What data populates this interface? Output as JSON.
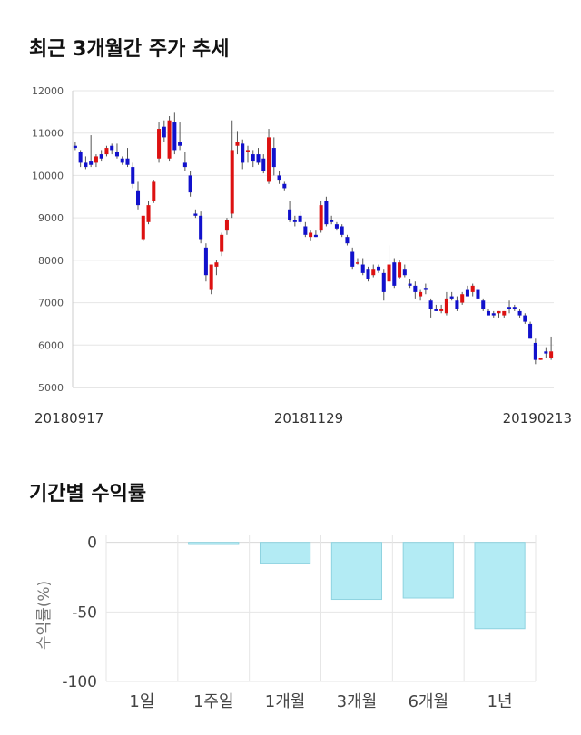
{
  "sections": {
    "candle_title": "최근 3개월간 주가 추세",
    "returns_title": "기간별 수익률"
  },
  "chart_data": [
    {
      "type": "candlestick",
      "title": "최근 3개월간 주가 추세",
      "ylim": [
        5000,
        12000
      ],
      "yticks": [
        5000,
        6000,
        7000,
        8000,
        9000,
        10000,
        11000,
        12000
      ],
      "xtick_labels": [
        "20180917",
        "20181129",
        "20190213"
      ],
      "grid": true,
      "colors": {
        "up": "#dd1111",
        "down": "#1111cc",
        "wick": "#555555",
        "grid": "#e6e6e6"
      },
      "ohlc": [
        [
          10700,
          10800,
          10600,
          10650
        ],
        [
          10550,
          10600,
          10200,
          10300
        ],
        [
          10300,
          10450,
          10150,
          10200
        ],
        [
          10350,
          10950,
          10200,
          10250
        ],
        [
          10300,
          10500,
          10200,
          10450
        ],
        [
          10500,
          10600,
          10350,
          10400
        ],
        [
          10500,
          10700,
          10450,
          10650
        ],
        [
          10700,
          10750,
          10500,
          10600
        ],
        [
          10550,
          10750,
          10400,
          10450
        ],
        [
          10400,
          10450,
          10250,
          10300
        ],
        [
          10400,
          10650,
          10200,
          10250
        ],
        [
          10200,
          10300,
          9700,
          9800
        ],
        [
          9650,
          9850,
          9200,
          9300
        ],
        [
          8500,
          9050,
          8450,
          9050
        ],
        [
          8900,
          9400,
          8850,
          9300
        ],
        [
          9400,
          9900,
          9350,
          9850
        ],
        [
          10400,
          11250,
          10300,
          11100
        ],
        [
          11150,
          11300,
          10800,
          10900
        ],
        [
          10400,
          11400,
          10350,
          11300
        ],
        [
          11250,
          11500,
          10500,
          10600
        ],
        [
          10800,
          11250,
          10600,
          10700
        ],
        [
          10300,
          10550,
          10100,
          10200
        ],
        [
          10000,
          10100,
          9500,
          9600
        ],
        [
          9100,
          9200,
          9000,
          9050
        ],
        [
          9050,
          9150,
          8400,
          8500
        ],
        [
          8300,
          8400,
          7500,
          7650
        ],
        [
          7300,
          7900,
          7200,
          7900
        ],
        [
          7850,
          8000,
          7650,
          7950
        ],
        [
          8200,
          8650,
          8100,
          8600
        ],
        [
          8700,
          9000,
          8600,
          8950
        ],
        [
          9100,
          11300,
          9000,
          10600
        ],
        [
          10700,
          11050,
          10500,
          10800
        ],
        [
          10750,
          10850,
          10150,
          10300
        ],
        [
          10550,
          10700,
          10300,
          10600
        ],
        [
          10500,
          10600,
          10200,
          10350
        ],
        [
          10500,
          10650,
          10250,
          10300
        ],
        [
          10400,
          10500,
          10050,
          10100
        ],
        [
          9850,
          11100,
          9800,
          10900
        ],
        [
          10650,
          10900,
          10000,
          10200
        ],
        [
          10000,
          10100,
          9800,
          9900
        ],
        [
          9800,
          9850,
          9650,
          9700
        ],
        [
          9200,
          9400,
          8900,
          8950
        ],
        [
          8950,
          9050,
          8800,
          8900
        ],
        [
          9050,
          9150,
          8850,
          8900
        ],
        [
          8800,
          8900,
          8550,
          8600
        ],
        [
          8550,
          8700,
          8450,
          8650
        ],
        [
          8600,
          8700,
          8550,
          8550
        ],
        [
          8700,
          9400,
          8650,
          9300
        ],
        [
          9400,
          9500,
          8800,
          8850
        ],
        [
          8950,
          9050,
          8850,
          8900
        ],
        [
          8850,
          8900,
          8700,
          8750
        ],
        [
          8800,
          8850,
          8550,
          8600
        ],
        [
          8550,
          8600,
          8350,
          8400
        ],
        [
          8200,
          8300,
          7800,
          7850
        ],
        [
          7950,
          8050,
          7900,
          7950
        ],
        [
          7900,
          8050,
          7650,
          7700
        ],
        [
          7800,
          7850,
          7500,
          7550
        ],
        [
          7650,
          7900,
          7600,
          7800
        ],
        [
          7850,
          7900,
          7700,
          7750
        ],
        [
          7700,
          7800,
          7050,
          7250
        ],
        [
          7500,
          8350,
          7450,
          7900
        ],
        [
          7950,
          8050,
          7350,
          7400
        ],
        [
          7600,
          8000,
          7550,
          7950
        ],
        [
          7800,
          7900,
          7600,
          7650
        ],
        [
          7450,
          7550,
          7350,
          7400
        ],
        [
          7400,
          7500,
          7100,
          7250
        ],
        [
          7150,
          7300,
          7050,
          7250
        ],
        [
          7350,
          7450,
          7200,
          7300
        ],
        [
          7050,
          7100,
          6650,
          6850
        ],
        [
          6850,
          6950,
          6800,
          6800
        ],
        [
          6800,
          6950,
          6750,
          6850
        ],
        [
          6750,
          7250,
          6700,
          7100
        ],
        [
          7150,
          7250,
          7050,
          7100
        ],
        [
          7050,
          7150,
          6800,
          6850
        ],
        [
          7000,
          7250,
          6950,
          7200
        ],
        [
          7300,
          7400,
          7150,
          7150
        ],
        [
          7250,
          7450,
          7150,
          7400
        ],
        [
          7300,
          7400,
          7050,
          7100
        ],
        [
          7050,
          7100,
          6800,
          6850
        ],
        [
          6800,
          6850,
          6700,
          6700
        ],
        [
          6750,
          6800,
          6650,
          6700
        ],
        [
          6750,
          6800,
          6650,
          6800
        ],
        [
          6700,
          6800,
          6650,
          6800
        ],
        [
          6900,
          7050,
          6750,
          6850
        ],
        [
          6900,
          6950,
          6800,
          6850
        ],
        [
          6800,
          6850,
          6650,
          6700
        ],
        [
          6700,
          6750,
          6500,
          6550
        ],
        [
          6500,
          6550,
          6150,
          6150
        ],
        [
          6050,
          6150,
          5550,
          5650
        ],
        [
          5650,
          5700,
          5650,
          5700
        ],
        [
          5850,
          5950,
          5700,
          5800
        ],
        [
          5700,
          6200,
          5650,
          5850
        ]
      ]
    },
    {
      "type": "bar",
      "title": "기간별 수익률",
      "ylabel": "수익률(%)",
      "ylim": [
        -100,
        5
      ],
      "yticks": [
        0,
        -50,
        -100
      ],
      "categories": [
        "1일",
        "1주일",
        "1개월",
        "3개월",
        "6개월",
        "1년"
      ],
      "values": [
        0,
        -1.5,
        -15,
        -41,
        -40,
        -62
      ],
      "colors": {
        "fill": "#b3ebf4",
        "stroke": "#8fd3e0",
        "grid": "#e6e6e6"
      }
    }
  ]
}
